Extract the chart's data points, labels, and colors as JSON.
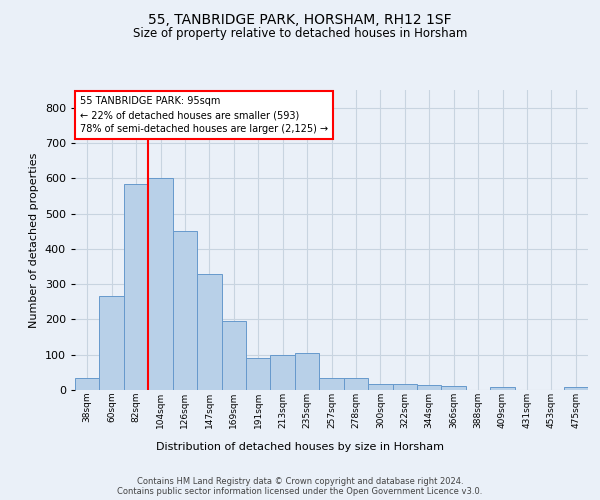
{
  "title_line1": "55, TANBRIDGE PARK, HORSHAM, RH12 1SF",
  "title_line2": "Size of property relative to detached houses in Horsham",
  "xlabel": "Distribution of detached houses by size in Horsham",
  "ylabel": "Number of detached properties",
  "footer_line1": "Contains HM Land Registry data © Crown copyright and database right 2024.",
  "footer_line2": "Contains public sector information licensed under the Open Government Licence v3.0.",
  "annotation_line1": "55 TANBRIDGE PARK: 95sqm",
  "annotation_line2": "← 22% of detached houses are smaller (593)",
  "annotation_line3": "78% of semi-detached houses are larger (2,125) →",
  "bar_color": "#b8d0e8",
  "bar_edge_color": "#6699cc",
  "vline_color": "red",
  "categories": [
    "38sqm",
    "60sqm",
    "82sqm",
    "104sqm",
    "126sqm",
    "147sqm",
    "169sqm",
    "191sqm",
    "213sqm",
    "235sqm",
    "257sqm",
    "278sqm",
    "300sqm",
    "322sqm",
    "344sqm",
    "366sqm",
    "388sqm",
    "409sqm",
    "431sqm",
    "453sqm",
    "475sqm"
  ],
  "values": [
    35,
    265,
    585,
    600,
    450,
    330,
    195,
    90,
    100,
    105,
    35,
    33,
    18,
    17,
    15,
    11,
    0,
    8,
    0,
    0,
    8
  ],
  "ylim": [
    0,
    850
  ],
  "yticks": [
    0,
    100,
    200,
    300,
    400,
    500,
    600,
    700,
    800
  ],
  "background_color": "#eaf0f8",
  "plot_bg_color": "#eaf0f8",
  "grid_color": "#c8d4e0"
}
